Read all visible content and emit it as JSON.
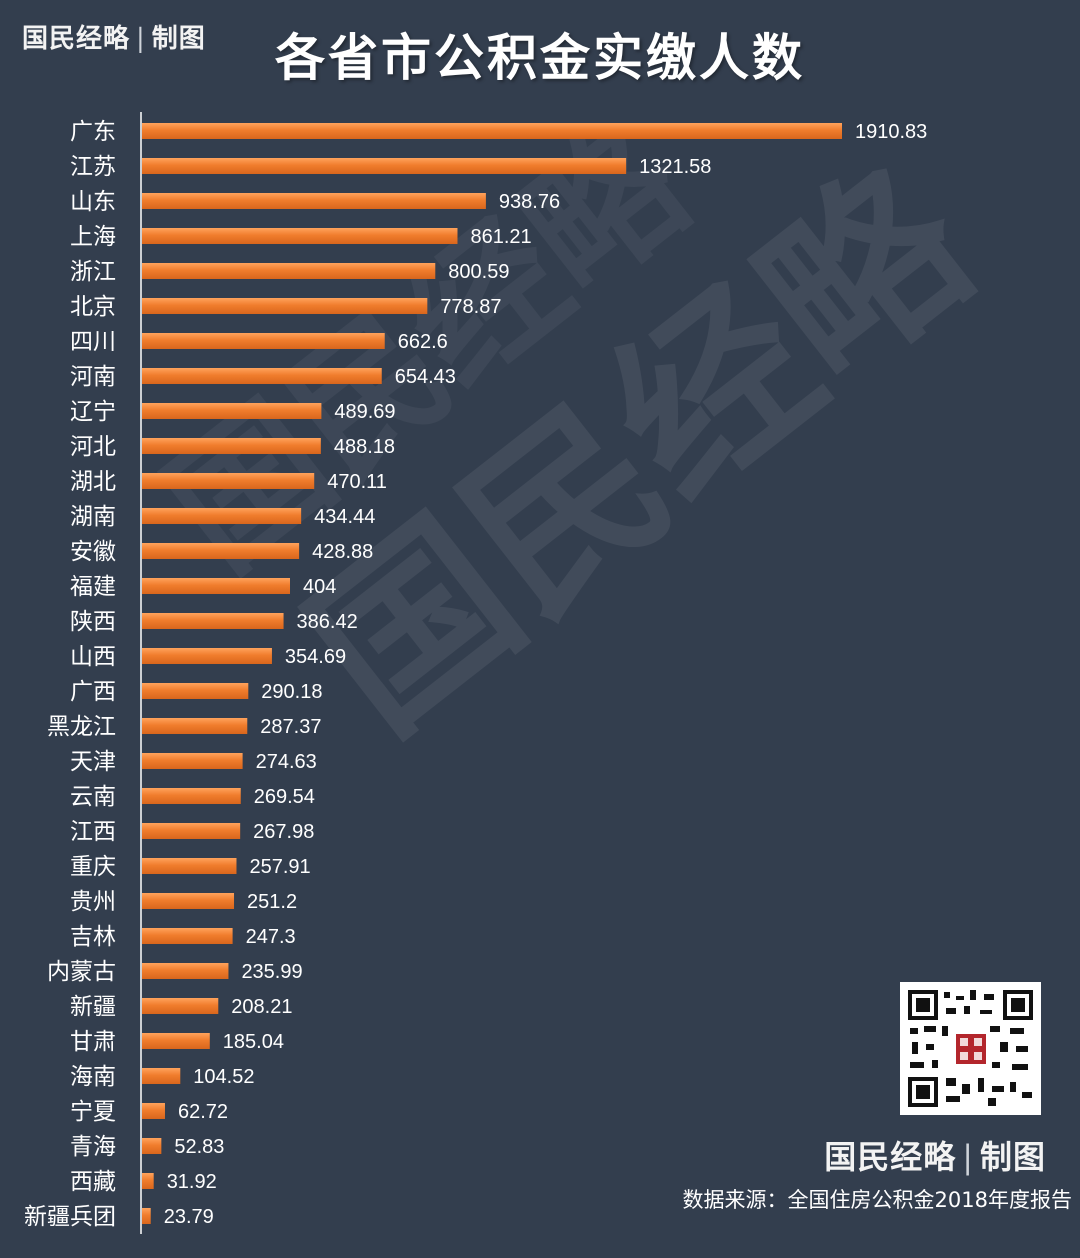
{
  "header": {
    "brand": "国民经略",
    "brand_suffix": "制图",
    "title": "各省市公积金实缴人数"
  },
  "footer": {
    "brand": "国民经略",
    "brand_suffix": "制图",
    "source": "数据来源：全国住房公积金2018年度报告"
  },
  "colors": {
    "background": "#333e4e",
    "bar": "#f07d2d",
    "bar_highlight": "#ffa35c",
    "text": "#ffffff"
  },
  "chart_data": {
    "type": "bar",
    "orientation": "horizontal",
    "title": "各省市公积金实缴人数",
    "xlabel": "",
    "ylabel": "",
    "xlim": [
      0,
      1910.83
    ],
    "grid": false,
    "categories": [
      "广东",
      "江苏",
      "山东",
      "上海",
      "浙江",
      "北京",
      "四川",
      "河南",
      "辽宁",
      "河北",
      "湖北",
      "湖南",
      "安徽",
      "福建",
      "陕西",
      "山西",
      "广西",
      "黑龙江",
      "天津",
      "云南",
      "江西",
      "重庆",
      "贵州",
      "吉林",
      "内蒙古",
      "新疆",
      "甘肃",
      "海南",
      "宁夏",
      "青海",
      "西藏",
      "新疆兵团"
    ],
    "values": [
      1910.83,
      1321.58,
      938.76,
      861.21,
      800.59,
      778.87,
      662.6,
      654.43,
      489.69,
      488.18,
      470.11,
      434.44,
      428.88,
      404,
      386.42,
      354.69,
      290.18,
      287.37,
      274.63,
      269.54,
      267.98,
      257.91,
      251.2,
      247.3,
      235.99,
      208.21,
      185.04,
      104.52,
      62.72,
      52.83,
      31.92,
      23.79
    ],
    "value_labels": [
      "1910.83",
      "1321.58",
      "938.76",
      "861.21",
      "800.59",
      "778.87",
      "662.6",
      "654.43",
      "489.69",
      "488.18",
      "470.11",
      "434.44",
      "428.88",
      "404",
      "386.42",
      "354.69",
      "290.18",
      "287.37",
      "274.63",
      "269.54",
      "267.98",
      "257.91",
      "251.2",
      "247.3",
      "235.99",
      "208.21",
      "185.04",
      "104.52",
      "62.72",
      "52.83",
      "31.92",
      "23.79"
    ]
  }
}
